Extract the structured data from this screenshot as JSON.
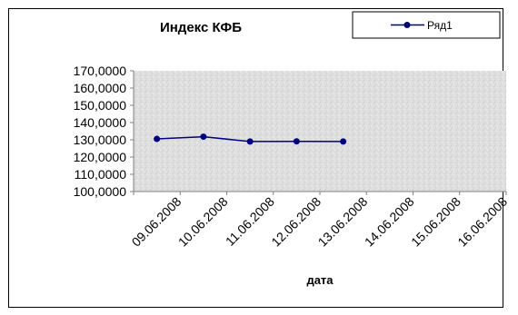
{
  "chart_data": {
    "type": "line",
    "title": "Индекс КФБ",
    "xlabel": "дата",
    "ylabel": "",
    "ylim": [
      100,
      170
    ],
    "y_ticks": [
      "170,0000",
      "160,0000",
      "150,0000",
      "140,0000",
      "130,0000",
      "120,0000",
      "110,0000",
      "100,0000"
    ],
    "x_ticks": [
      "09.06.2008",
      "10.06.2008",
      "11.06.2008",
      "12.06.2008",
      "13.06.2008",
      "14.06.2008",
      "15.06.2008",
      "16.06.2008"
    ],
    "grid": false,
    "legend_position": "top-right",
    "series": [
      {
        "name": "Ряд1",
        "color": "#000080",
        "x": [
          "09.06.2008",
          "10.06.2008",
          "11.06.2008",
          "12.06.2008",
          "13.06.2008"
        ],
        "values": [
          130.5,
          131.8,
          129.0,
          129.1,
          129.0
        ]
      }
    ]
  },
  "colors": {
    "series": "#000080",
    "plot_bg": "#dcdcdc",
    "border": "#000000"
  }
}
